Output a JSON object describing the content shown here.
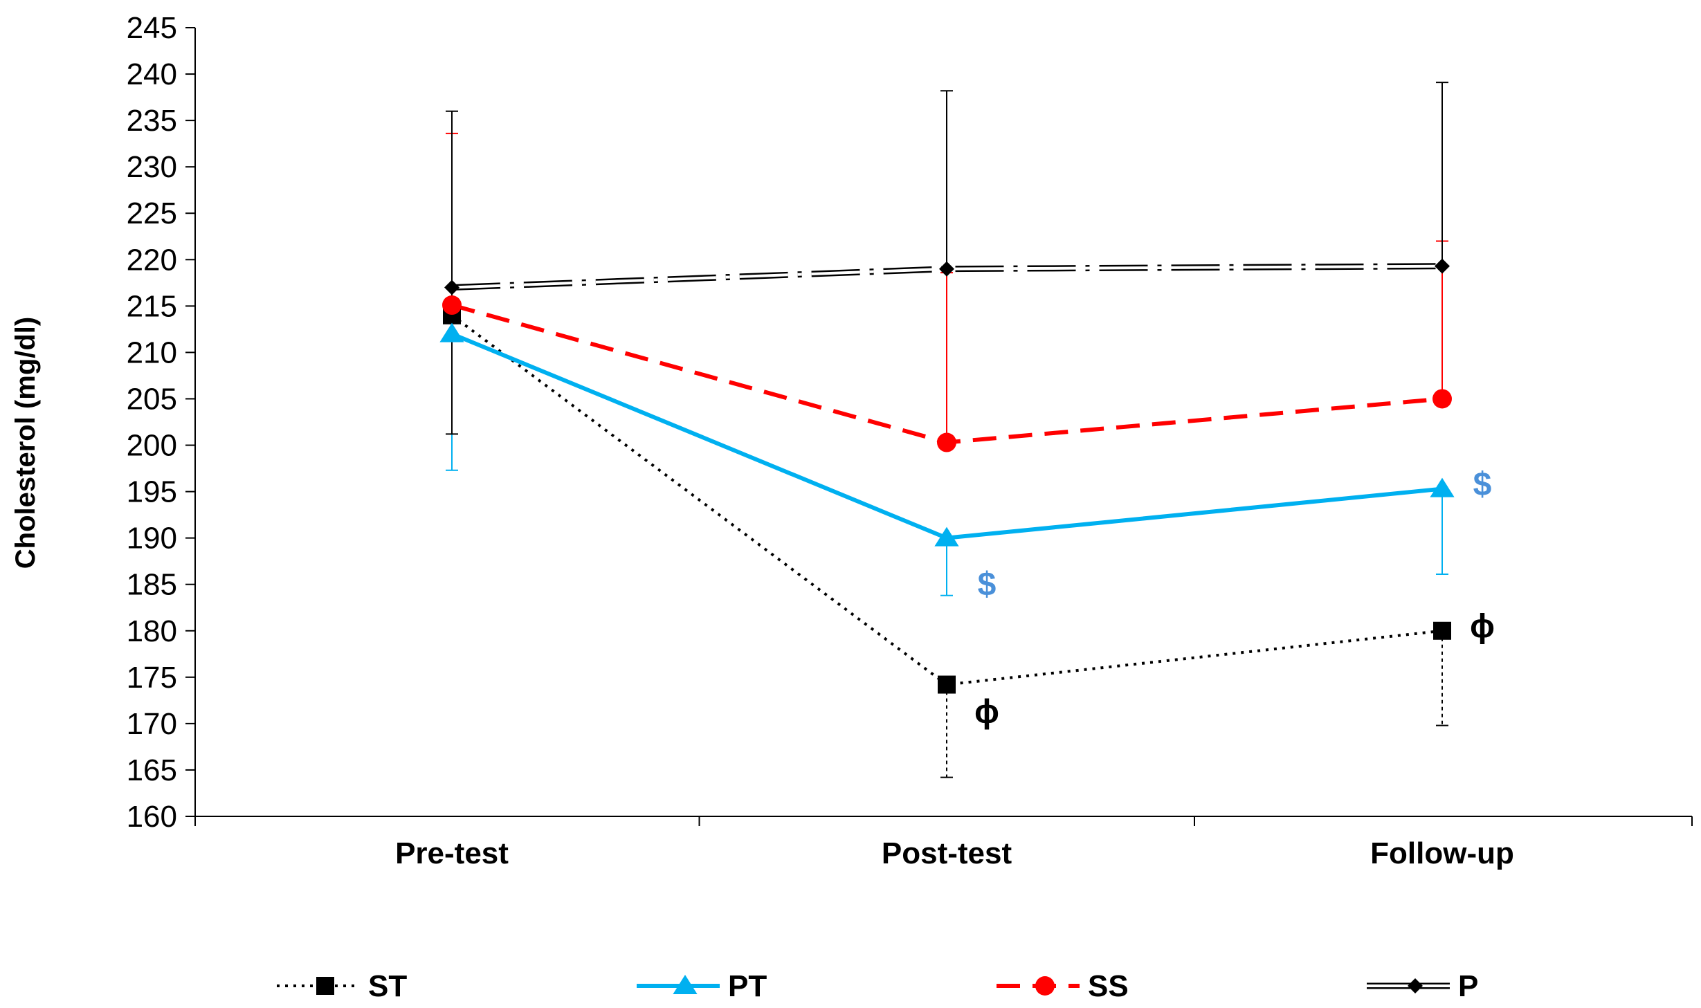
{
  "chart_data": {
    "type": "line",
    "title": "",
    "xlabel": "",
    "ylabel": "Cholesterol (mg/dl)",
    "ylim": [
      160,
      245
    ],
    "ytick_step": 5,
    "categories": [
      "Pre-test",
      "Post-test",
      "Follow-up"
    ],
    "series": [
      {
        "name": "ST",
        "color": "#000000",
        "line": "dotted",
        "marker": "square",
        "values": [
          214,
          174.2,
          180
        ],
        "err_up": [
          null,
          null,
          null
        ],
        "err_down": [
          null,
          10,
          10.2
        ]
      },
      {
        "name": "PT",
        "color": "#00b0f0",
        "line": "solid",
        "marker": "triangle",
        "values": [
          212,
          190,
          195.3
        ],
        "err_up": [
          null,
          null,
          null
        ],
        "err_down": [
          14.7,
          6.2,
          9.2
        ]
      },
      {
        "name": "SS",
        "color": "#ff0000",
        "line": "dashed",
        "marker": "circle",
        "values": [
          215.1,
          200.3,
          205
        ],
        "err_up": [
          18.5,
          18.3,
          17
        ],
        "err_down": [
          null,
          null,
          null
        ]
      },
      {
        "name": "P",
        "color": "#000000",
        "line": "dash-dot-hollow",
        "marker": "diamond",
        "values": [
          217,
          219,
          219.3
        ],
        "err_up": [
          19,
          19.2,
          19.8
        ],
        "err_down": [
          15.8,
          null,
          null
        ]
      }
    ],
    "annotations": [
      {
        "text": "$",
        "category": "Post-test",
        "value": 185,
        "color": "#4a90d9"
      },
      {
        "text": "$",
        "category": "Follow-up",
        "value": 195.8,
        "color": "#4a90d9"
      },
      {
        "text": "ϕ",
        "category": "Post-test",
        "value": 171.3,
        "color": "#000000"
      },
      {
        "text": "ϕ",
        "category": "Follow-up",
        "value": 180.5,
        "color": "#000000"
      }
    ]
  }
}
